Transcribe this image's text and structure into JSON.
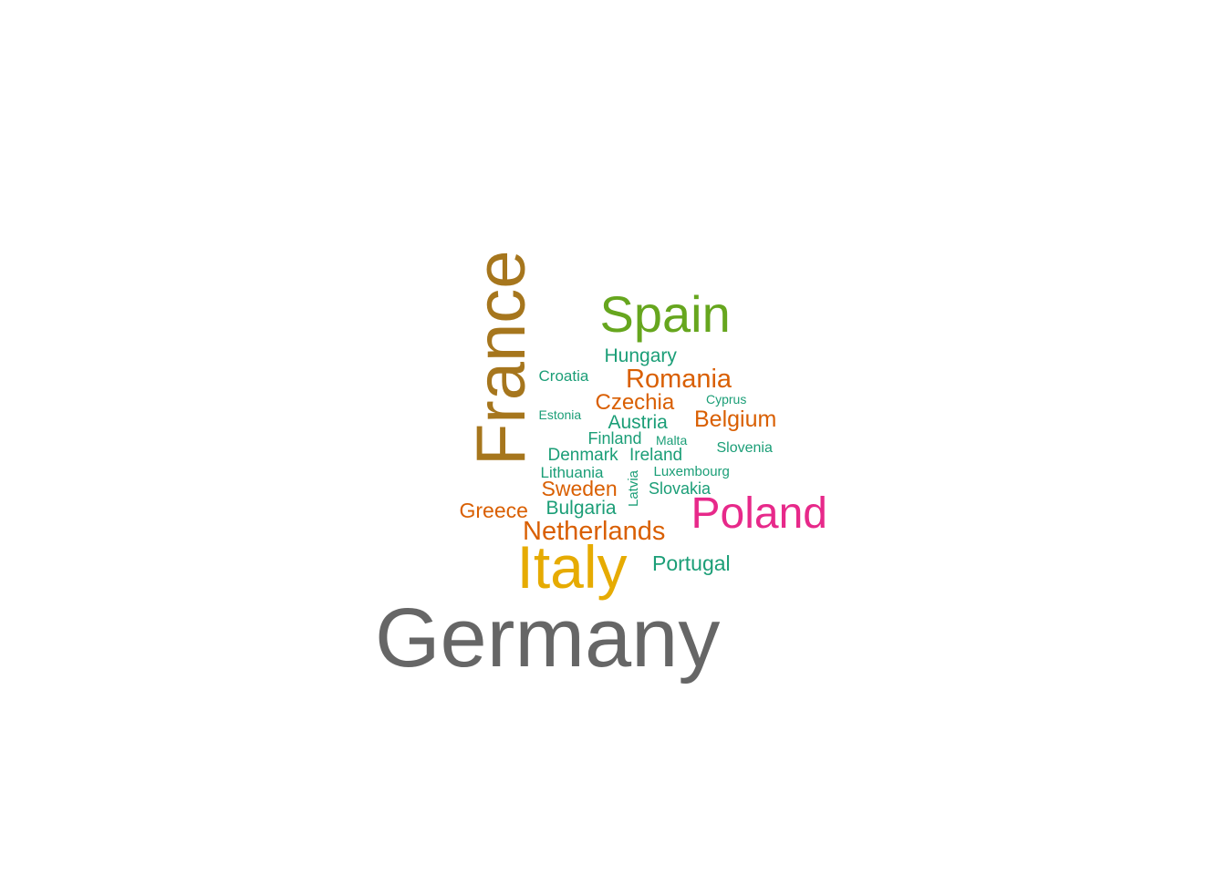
{
  "words": [
    {
      "text": "Germany",
      "color": "#666666"
    },
    {
      "text": "France",
      "color": "#A6761D"
    },
    {
      "text": "Italy",
      "color": "#E6AB02"
    },
    {
      "text": "Spain",
      "color": "#66A61E"
    },
    {
      "text": "Poland",
      "color": "#E7298A"
    },
    {
      "text": "Netherlands",
      "color": "#D95F02"
    },
    {
      "text": "Romania",
      "color": "#D95F02"
    },
    {
      "text": "Belgium",
      "color": "#D95F02"
    },
    {
      "text": "Czechia",
      "color": "#D95F02"
    },
    {
      "text": "Sweden",
      "color": "#D95F02"
    },
    {
      "text": "Greece",
      "color": "#D95F02"
    },
    {
      "text": "Portugal",
      "color": "#1B9E77"
    },
    {
      "text": "Hungary",
      "color": "#1B9E77"
    },
    {
      "text": "Austria",
      "color": "#1B9E77"
    },
    {
      "text": "Bulgaria",
      "color": "#1B9E77"
    },
    {
      "text": "Denmark",
      "color": "#1B9E77"
    },
    {
      "text": "Ireland",
      "color": "#1B9E77"
    },
    {
      "text": "Finland",
      "color": "#1B9E77"
    },
    {
      "text": "Slovakia",
      "color": "#1B9E77"
    },
    {
      "text": "Croatia",
      "color": "#1B9E77"
    },
    {
      "text": "Lithuania",
      "color": "#1B9E77"
    },
    {
      "text": "Slovenia",
      "color": "#1B9E77"
    },
    {
      "text": "Latvia",
      "color": "#1B9E77"
    },
    {
      "text": "Luxembourg",
      "color": "#1B9E77"
    },
    {
      "text": "Estonia",
      "color": "#1B9E77"
    },
    {
      "text": "Cyprus",
      "color": "#1B9E77"
    },
    {
      "text": "Malta",
      "color": "#1B9E77"
    }
  ]
}
